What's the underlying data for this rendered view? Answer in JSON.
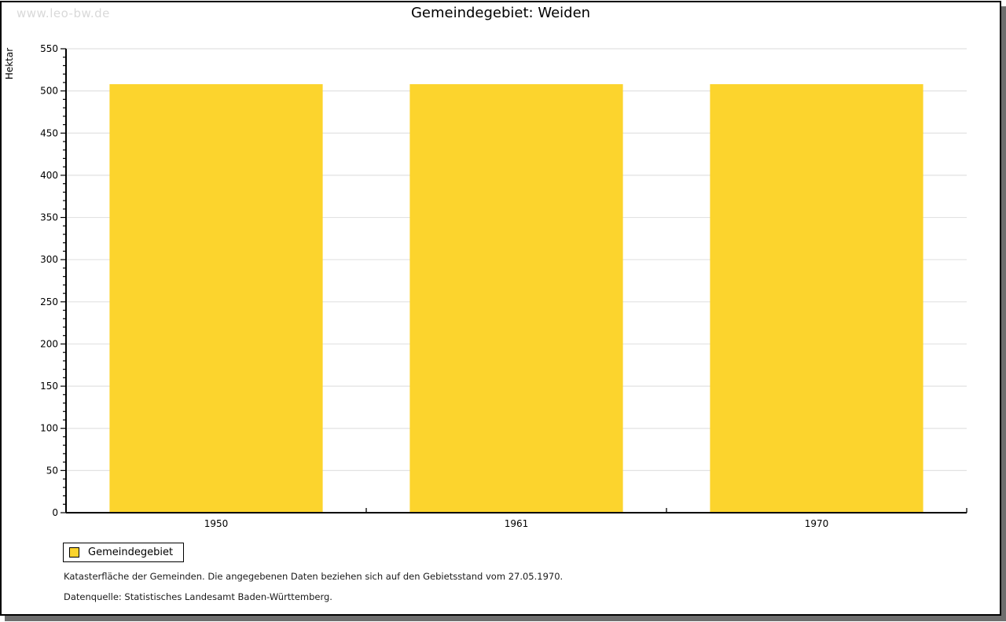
{
  "watermark": "www.leo-bw.de",
  "chart_data": {
    "type": "bar",
    "title": "Gemeindegebiet:  Weiden",
    "categories": [
      "1950",
      "1961",
      "1970"
    ],
    "series": [
      {
        "name": "Gemeindegebiet",
        "values": [
          508,
          508,
          508
        ],
        "color": "#fcd42d"
      }
    ],
    "xlabel": "",
    "ylabel": "Hektar",
    "ylim": [
      0,
      550
    ],
    "ytick_step": 50,
    "ytick_minor_step": 10,
    "ytick_labels": [
      "0",
      "50",
      "100",
      "150",
      "200",
      "250",
      "300",
      "350",
      "400",
      "450",
      "500",
      "550"
    ],
    "grid": true,
    "legend_position": "bottom-left"
  },
  "colors": {
    "accent": "#fcd42d",
    "grid": "#e2e2e2",
    "axis": "#000000",
    "shadow": "#6e6e6e",
    "watermark": "#d9d9d9"
  },
  "footer": {
    "line1": "Katasterfläche der Gemeinden. Die angegebenen Daten beziehen sich auf den Gebietsstand vom 27.05.1970.",
    "line2": "Datenquelle: Statistisches Landesamt Baden-Württemberg."
  }
}
